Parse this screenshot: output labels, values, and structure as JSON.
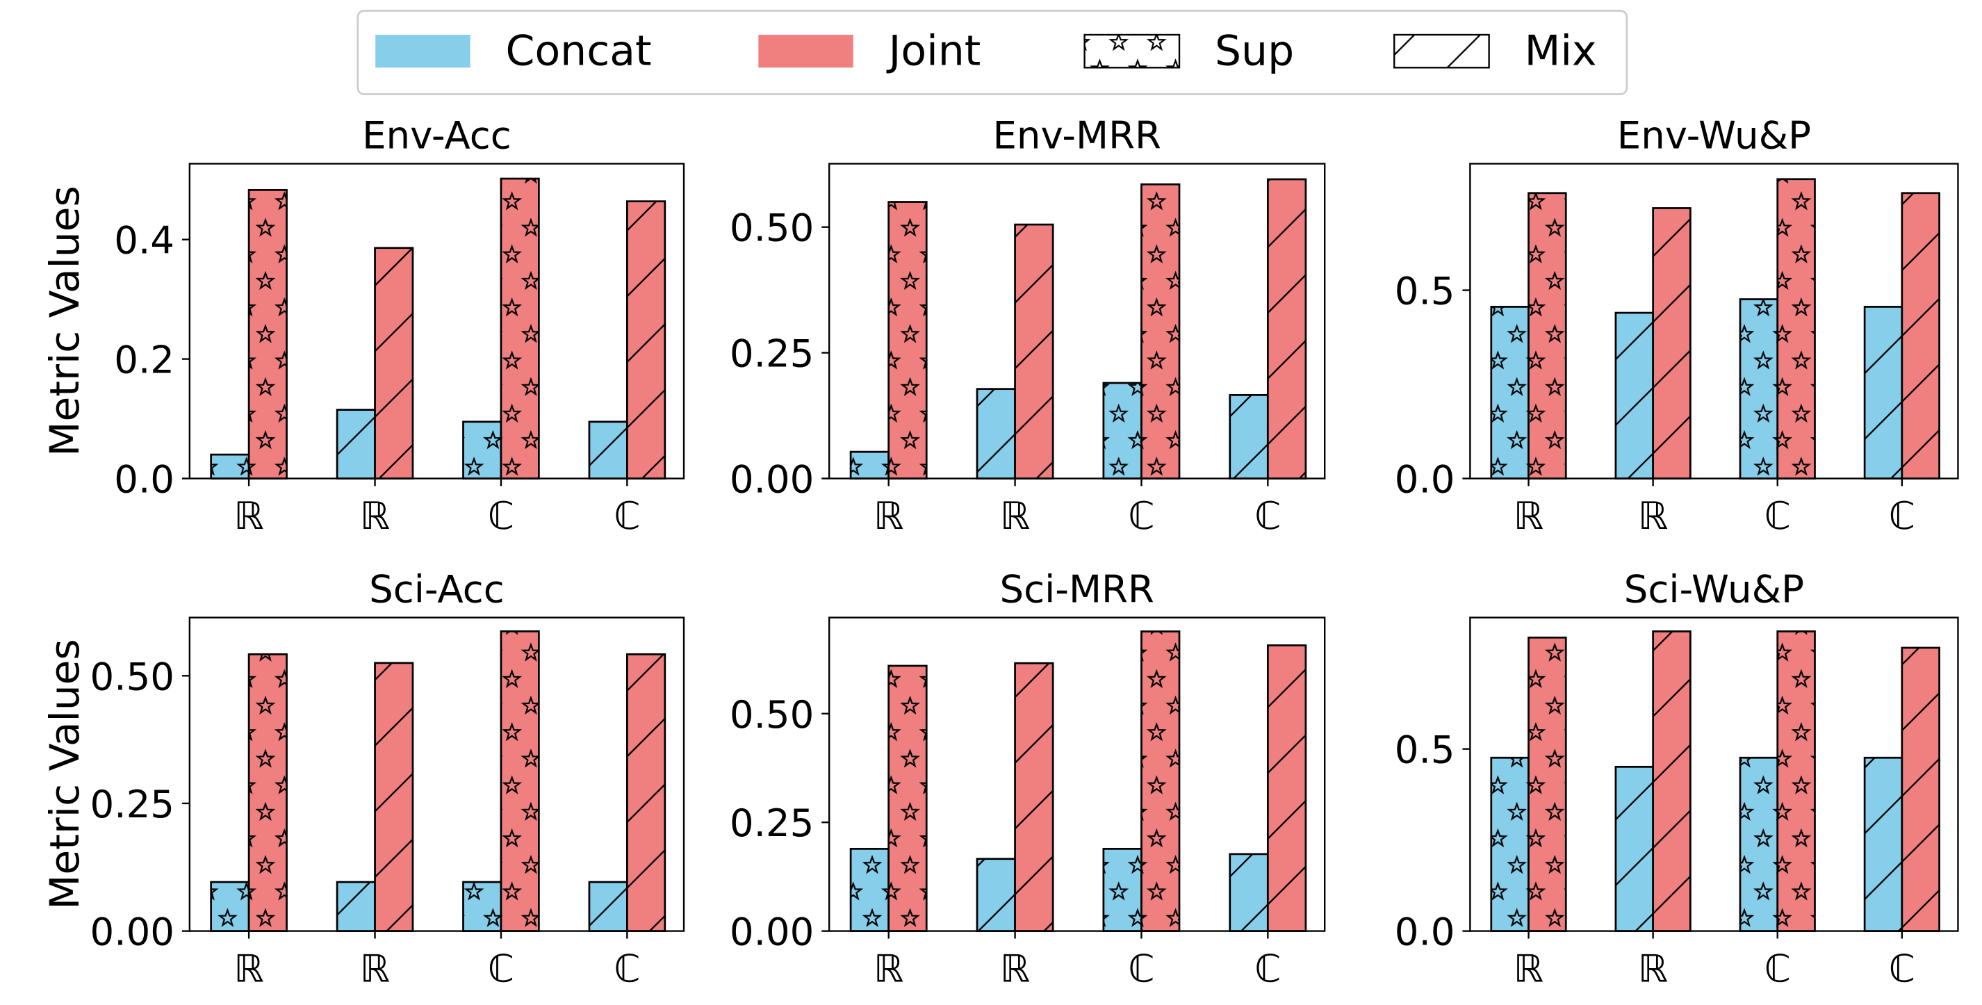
{
  "chart_data": {
    "type": "bar",
    "ylabel": "Metric Values",
    "categories": [
      "ℝ",
      "ℝ",
      "ℂ",
      "ℂ"
    ],
    "category_hatch": [
      "Sup",
      "Mix",
      "Sup",
      "Mix"
    ],
    "legend": {
      "placement": "top-center",
      "entries": [
        {
          "label": "Concat",
          "kind": "color",
          "color": "#87CEEB"
        },
        {
          "label": "Joint",
          "kind": "color",
          "color": "#F08080"
        },
        {
          "label": "Sup",
          "kind": "hatch",
          "hatch": "stars"
        },
        {
          "label": "Mix",
          "kind": "hatch",
          "hatch": "diagonal"
        }
      ]
    },
    "colors": {
      "Concat": "#87CEEB",
      "Joint": "#F08080"
    },
    "panels": [
      {
        "title": "Env-Acc",
        "ylim": [
          0,
          0.527
        ],
        "yticks": [
          0.0,
          0.2,
          0.4
        ],
        "ytick_labels": [
          "0.0",
          "0.2",
          "0.4"
        ],
        "series": [
          {
            "name": "Concat",
            "values": [
              0.04,
              0.115,
              0.095,
              0.095
            ]
          },
          {
            "name": "Joint",
            "values": [
              0.483,
              0.386,
              0.502,
              0.464
            ]
          }
        ]
      },
      {
        "title": "Env-MRR",
        "ylim": [
          0,
          0.626
        ],
        "yticks": [
          0.0,
          0.25,
          0.5
        ],
        "ytick_labels": [
          "0.00",
          "0.25",
          "0.50"
        ],
        "series": [
          {
            "name": "Concat",
            "values": [
              0.053,
              0.178,
              0.19,
              0.166
            ]
          },
          {
            "name": "Joint",
            "values": [
              0.55,
              0.505,
              0.585,
              0.595
            ]
          }
        ]
      },
      {
        "title": "Env-Wu&P",
        "ylim": [
          0,
          0.836
        ],
        "yticks": [
          0.0,
          0.5
        ],
        "ytick_labels": [
          "0.0",
          "0.5"
        ],
        "series": [
          {
            "name": "Concat",
            "values": [
              0.456,
              0.44,
              0.476,
              0.456
            ]
          },
          {
            "name": "Joint",
            "values": [
              0.758,
              0.718,
              0.795,
              0.758
            ]
          }
        ]
      },
      {
        "title": "Sci-Acc",
        "ylim": [
          0,
          0.614
        ],
        "yticks": [
          0.0,
          0.25,
          0.5
        ],
        "ytick_labels": [
          "0.00",
          "0.25",
          "0.50"
        ],
        "series": [
          {
            "name": "Concat",
            "values": [
              0.096,
              0.096,
              0.096,
              0.096
            ]
          },
          {
            "name": "Joint",
            "values": [
              0.542,
              0.525,
              0.587,
              0.542
            ]
          }
        ]
      },
      {
        "title": "Sci-MRR",
        "ylim": [
          0,
          0.721
        ],
        "yticks": [
          0.0,
          0.25,
          0.5
        ],
        "ytick_labels": [
          "0.00",
          "0.25",
          "0.50"
        ],
        "series": [
          {
            "name": "Concat",
            "values": [
              0.189,
              0.166,
              0.189,
              0.177
            ]
          },
          {
            "name": "Joint",
            "values": [
              0.61,
              0.616,
              0.689,
              0.657
            ]
          }
        ]
      },
      {
        "title": "Sci-Wu&P",
        "ylim": [
          0,
          0.861
        ],
        "yticks": [
          0.0,
          0.5
        ],
        "ytick_labels": [
          "0.0",
          "0.5"
        ],
        "series": [
          {
            "name": "Concat",
            "values": [
              0.476,
              0.451,
              0.476,
              0.476
            ]
          },
          {
            "name": "Joint",
            "values": [
              0.806,
              0.823,
              0.823,
              0.778
            ]
          }
        ]
      }
    ]
  }
}
